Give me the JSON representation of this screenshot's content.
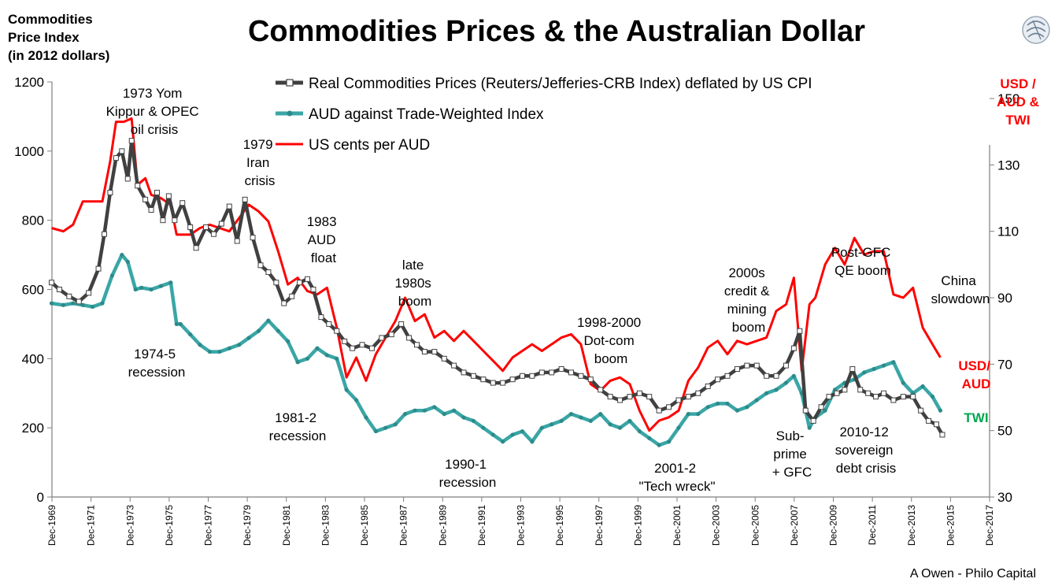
{
  "title": "Commodities Prices & the Australian Dollar",
  "left_axis_title": [
    "Commodities",
    "Price Index",
    "(in 2012 dollars)"
  ],
  "right_axis_title": [
    "USD /",
    "AUD &",
    "TWI"
  ],
  "credit": "A Owen - Philo Capital",
  "colors": {
    "commodities": "#404040",
    "twi": "#3aa6a6",
    "usd": "#ff0000",
    "twi_label": "#00a650"
  },
  "chart_data": {
    "type": "line",
    "title": "Commodities Prices & the Australian Dollar",
    "x_ticks": [
      "Dec-1969",
      "Dec-1971",
      "Dec-1973",
      "Dec-1975",
      "Dec-1977",
      "Dec-1979",
      "Dec-1981",
      "Dec-1983",
      "Dec-1985",
      "Dec-1987",
      "Dec-1989",
      "Dec-1991",
      "Dec-1993",
      "Dec-1995",
      "Dec-1997",
      "Dec-1999",
      "Dec-2001",
      "Dec-2003",
      "Dec-2005",
      "Dec-2007",
      "Dec-2009",
      "Dec-2011",
      "Dec-2013",
      "Dec-2015",
      "Dec-2017"
    ],
    "xlim": [
      1969.92,
      2017.92
    ],
    "y_left": {
      "min": 0,
      "max": 1200,
      "ticks": [
        0,
        200,
        400,
        600,
        800,
        1000,
        1200
      ]
    },
    "y_right": {
      "min": 30,
      "max": 155,
      "ticks": [
        30,
        50,
        70,
        90,
        110,
        130,
        150
      ]
    },
    "legend": [
      "Real Commodities Prices (Reuters/Jefferies-CRB Index) deflated by US CPI",
      "AUD against Trade-Weighted Index",
      "US cents  per AUD"
    ],
    "series": [
      {
        "name": "Real Commodities Prices (Reuters/Jefferies-CRB Index) deflated by US CPI",
        "axis": "left",
        "x": [
          1969.9,
          1970.3,
          1970.8,
          1971.3,
          1971.8,
          1972.3,
          1972.6,
          1972.9,
          1973.2,
          1973.5,
          1973.8,
          1974.0,
          1974.3,
          1974.7,
          1975.0,
          1975.3,
          1975.6,
          1975.9,
          1976.2,
          1976.6,
          1977.0,
          1977.3,
          1977.8,
          1978.2,
          1978.6,
          1979.0,
          1979.4,
          1979.8,
          1980.2,
          1980.6,
          1981.0,
          1981.4,
          1981.8,
          1982.2,
          1982.6,
          1983.0,
          1983.3,
          1983.7,
          1984.1,
          1984.5,
          1984.9,
          1985.3,
          1985.8,
          1986.3,
          1986.8,
          1987.3,
          1987.8,
          1988.2,
          1988.6,
          1989.0,
          1989.5,
          1990.0,
          1990.5,
          1991.0,
          1991.5,
          1992.0,
          1992.5,
          1993.0,
          1993.5,
          1994.0,
          1994.5,
          1995.0,
          1995.5,
          1996.0,
          1996.5,
          1997.0,
          1997.5,
          1998.0,
          1998.5,
          1999.0,
          1999.5,
          2000.0,
          2000.5,
          2001.0,
          2001.5,
          2002.0,
          2002.5,
          2003.0,
          2003.5,
          2004.0,
          2004.5,
          2005.0,
          2005.5,
          2006.0,
          2006.5,
          2007.0,
          2007.5,
          2007.9,
          2008.2,
          2008.5,
          2008.9,
          2009.3,
          2009.7,
          2010.1,
          2010.5,
          2010.9,
          2011.3,
          2011.7,
          2012.1,
          2012.5,
          2013.0,
          2013.5,
          2014.0,
          2014.4,
          2014.8,
          2015.2,
          2015.5
        ],
        "values": [
          620,
          600,
          580,
          565,
          590,
          660,
          760,
          880,
          980,
          1000,
          920,
          1030,
          900,
          860,
          830,
          880,
          800,
          870,
          800,
          850,
          780,
          720,
          780,
          760,
          790,
          840,
          740,
          860,
          750,
          670,
          650,
          620,
          560,
          580,
          620,
          630,
          600,
          520,
          500,
          480,
          450,
          430,
          440,
          430,
          460,
          470,
          500,
          460,
          440,
          420,
          420,
          400,
          380,
          360,
          350,
          340,
          330,
          330,
          340,
          350,
          350,
          360,
          360,
          370,
          360,
          350,
          340,
          310,
          290,
          280,
          290,
          300,
          290,
          250,
          260,
          280,
          290,
          300,
          320,
          340,
          350,
          370,
          380,
          380,
          350,
          350,
          380,
          430,
          480,
          250,
          220,
          260,
          290,
          300,
          310,
          370,
          310,
          300,
          290,
          300,
          280,
          290,
          290,
          250,
          220,
          210,
          180
        ]
      },
      {
        "name": "AUD against Trade-Weighted Index",
        "axis": "left",
        "x": [
          1969.9,
          1970.5,
          1971.0,
          1971.5,
          1972.0,
          1972.5,
          1973.0,
          1973.5,
          1973.8,
          1974.2,
          1974.5,
          1975.0,
          1975.5,
          1976.0,
          1976.3,
          1976.5,
          1977.0,
          1977.5,
          1978.0,
          1978.5,
          1979.0,
          1979.5,
          1980.0,
          1980.5,
          1981.0,
          1981.5,
          1982.0,
          1982.5,
          1983.0,
          1983.5,
          1984.0,
          1984.5,
          1985.0,
          1985.5,
          1986.0,
          1986.5,
          1987.0,
          1987.5,
          1988.0,
          1988.5,
          1989.0,
          1989.5,
          1990.0,
          1990.5,
          1991.0,
          1991.5,
          1992.0,
          1992.5,
          1993.0,
          1993.5,
          1994.0,
          1994.5,
          1995.0,
          1995.5,
          1996.0,
          1996.5,
          1997.0,
          1997.5,
          1998.0,
          1998.5,
          1999.0,
          1999.5,
          2000.0,
          2000.5,
          2001.0,
          2001.5,
          2002.0,
          2002.5,
          2003.0,
          2003.5,
          2004.0,
          2004.5,
          2005.0,
          2005.5,
          2006.0,
          2006.5,
          2007.0,
          2007.5,
          2007.9,
          2008.3,
          2008.7,
          2009.0,
          2009.5,
          2010.0,
          2010.5,
          2011.0,
          2011.5,
          2012.0,
          2012.5,
          2013.0,
          2013.5,
          2014.0,
          2014.5,
          2015.0,
          2015.4
        ],
        "values": [
          560,
          555,
          560,
          555,
          550,
          560,
          640,
          700,
          680,
          600,
          605,
          600,
          610,
          620,
          500,
          500,
          470,
          440,
          420,
          420,
          430,
          440,
          460,
          480,
          510,
          480,
          450,
          390,
          400,
          430,
          410,
          400,
          310,
          280,
          230,
          190,
          200,
          210,
          240,
          250,
          250,
          260,
          240,
          250,
          230,
          220,
          200,
          180,
          160,
          180,
          190,
          160,
          200,
          210,
          220,
          240,
          230,
          220,
          240,
          210,
          200,
          220,
          190,
          170,
          150,
          160,
          200,
          240,
          240,
          260,
          270,
          270,
          250,
          260,
          280,
          300,
          310,
          330,
          350,
          300,
          200,
          230,
          250,
          310,
          330,
          340,
          360,
          370,
          380,
          390,
          330,
          300,
          320,
          290,
          250
        ]
      },
      {
        "name": "US cents  per AUD",
        "axis": "right",
        "x": [
          1969.9,
          1970.5,
          1971.0,
          1971.5,
          1972.0,
          1972.5,
          1972.9,
          1973.2,
          1973.6,
          1974.0,
          1974.3,
          1974.7,
          1975.0,
          1975.5,
          1976.0,
          1976.3,
          1976.7,
          1977.0,
          1977.5,
          1978.0,
          1978.5,
          1979.0,
          1979.5,
          1980.0,
          1980.5,
          1981.0,
          1981.5,
          1982.0,
          1982.5,
          1983.0,
          1983.5,
          1984.0,
          1984.5,
          1985.0,
          1985.5,
          1986.0,
          1986.5,
          1987.0,
          1987.5,
          1988.0,
          1988.5,
          1989.0,
          1989.5,
          1990.0,
          1990.5,
          1991.0,
          1991.5,
          1992.0,
          1992.5,
          1993.0,
          1993.5,
          1994.0,
          1994.5,
          1995.0,
          1995.5,
          1996.0,
          1996.5,
          1997.0,
          1997.5,
          1998.0,
          1998.5,
          1999.0,
          1999.5,
          2000.0,
          2000.5,
          2001.0,
          2001.5,
          2002.0,
          2002.5,
          2003.0,
          2003.5,
          2004.0,
          2004.5,
          2005.0,
          2005.5,
          2006.0,
          2006.5,
          2007.0,
          2007.5,
          2007.9,
          2008.3,
          2008.7,
          2009.0,
          2009.5,
          2010.0,
          2010.5,
          2011.0,
          2011.5,
          2012.0,
          2012.5,
          2013.0,
          2013.5,
          2014.0,
          2014.5,
          2015.0,
          2015.4
        ],
        "values": [
          111,
          110,
          112,
          119,
          119,
          119,
          131,
          143,
          143,
          144,
          124,
          126,
          121,
          120,
          118,
          109,
          109,
          109,
          111,
          112,
          111,
          110,
          114,
          118,
          116,
          113,
          104,
          94,
          96,
          92,
          91,
          93,
          81,
          66,
          72,
          65,
          73,
          78,
          83,
          90,
          83,
          85,
          78,
          80,
          77,
          80,
          77,
          74,
          71,
          68,
          72,
          74,
          76,
          74,
          76,
          78,
          79,
          76,
          64,
          62,
          65,
          66,
          64,
          56,
          50,
          53,
          54,
          56,
          65,
          69,
          75,
          77,
          73,
          77,
          76,
          77,
          78,
          86,
          88,
          96,
          68,
          88,
          90,
          100,
          105,
          100,
          108,
          103,
          104,
          104,
          91,
          90,
          93,
          81,
          76,
          72
        ]
      }
    ],
    "end_labels": {
      "usd": [
        "USD/",
        "AUD"
      ],
      "twi": "TWI"
    },
    "annotations": [
      {
        "lines": [
          "1973 Yom",
          "Kippur & OPEC",
          "oil crisis"
        ]
      },
      {
        "lines": [
          "1979",
          "Iran",
          "crisis"
        ]
      },
      {
        "lines": [
          "1983",
          "AUD",
          "float"
        ]
      },
      {
        "lines": [
          "late",
          "1980s",
          "boom"
        ]
      },
      {
        "lines": [
          "1974-5",
          "recession"
        ]
      },
      {
        "lines": [
          "1981-2",
          "recession"
        ]
      },
      {
        "lines": [
          "1990-1",
          "recession"
        ]
      },
      {
        "lines": [
          "1998-2000",
          "Dot-com",
          "boom"
        ]
      },
      {
        "lines": [
          "2001-2",
          "\"Tech wreck\""
        ]
      },
      {
        "lines": [
          "2000s",
          "credit &",
          "mining",
          "boom"
        ]
      },
      {
        "lines": [
          "Sub-",
          "prime",
          "+ GFC"
        ]
      },
      {
        "lines": [
          "Post-GFC",
          "QE boom"
        ]
      },
      {
        "lines": [
          "2010-12",
          "sovereign",
          "debt crisis"
        ]
      },
      {
        "lines": [
          "China",
          "slowdown"
        ]
      }
    ]
  }
}
